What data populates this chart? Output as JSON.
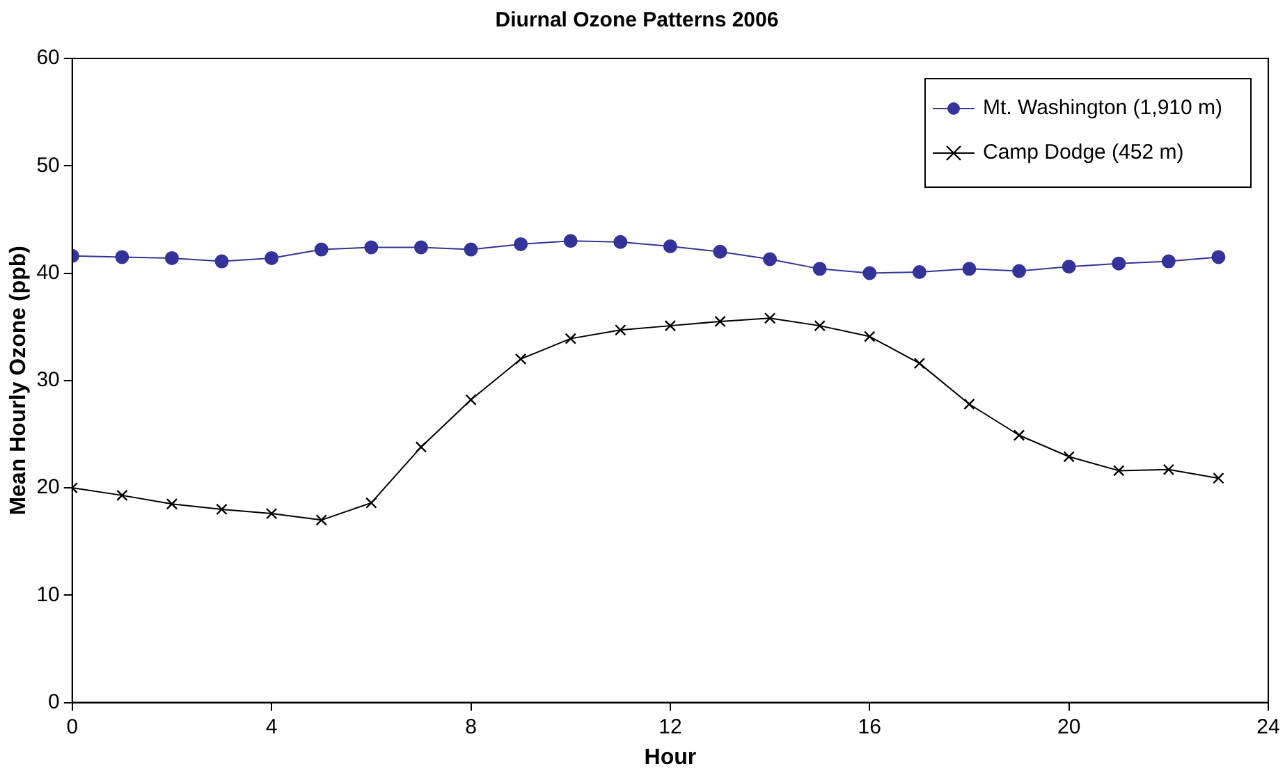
{
  "chart_data": {
    "type": "line",
    "title": "Diurnal Ozone Patterns 2006",
    "xlabel": "Hour",
    "ylabel": "Mean Hourly Ozone (ppb)",
    "x": [
      0,
      1,
      2,
      3,
      4,
      5,
      6,
      7,
      8,
      9,
      10,
      11,
      12,
      13,
      14,
      15,
      16,
      17,
      18,
      19,
      20,
      21,
      22,
      23
    ],
    "series": [
      {
        "name": "Mt. Washington (1,910 m)",
        "color": "#333399",
        "marker": "circle",
        "values": [
          41.6,
          41.5,
          41.4,
          41.1,
          41.4,
          42.2,
          42.4,
          42.4,
          42.2,
          42.7,
          43.0,
          42.9,
          42.5,
          42.0,
          41.3,
          40.4,
          40.0,
          40.1,
          40.4,
          40.2,
          40.6,
          40.9,
          41.1,
          41.5
        ]
      },
      {
        "name": "Camp Dodge (452 m)",
        "color": "#000000",
        "marker": "cross",
        "values": [
          20.0,
          19.3,
          18.5,
          18.0,
          17.6,
          17.0,
          18.6,
          23.8,
          28.2,
          32.0,
          33.9,
          34.7,
          35.1,
          35.5,
          35.8,
          35.1,
          34.1,
          31.6,
          27.8,
          24.9,
          22.9,
          21.6,
          21.7,
          20.9
        ]
      }
    ],
    "xlim": [
      0,
      24
    ],
    "xticks": [
      0,
      4,
      8,
      12,
      16,
      20,
      24
    ],
    "ylim": [
      0,
      60
    ],
    "yticks": [
      0,
      10,
      20,
      30,
      40,
      50,
      60
    ],
    "grid": false,
    "legend": "top right",
    "line_style": "solid"
  }
}
